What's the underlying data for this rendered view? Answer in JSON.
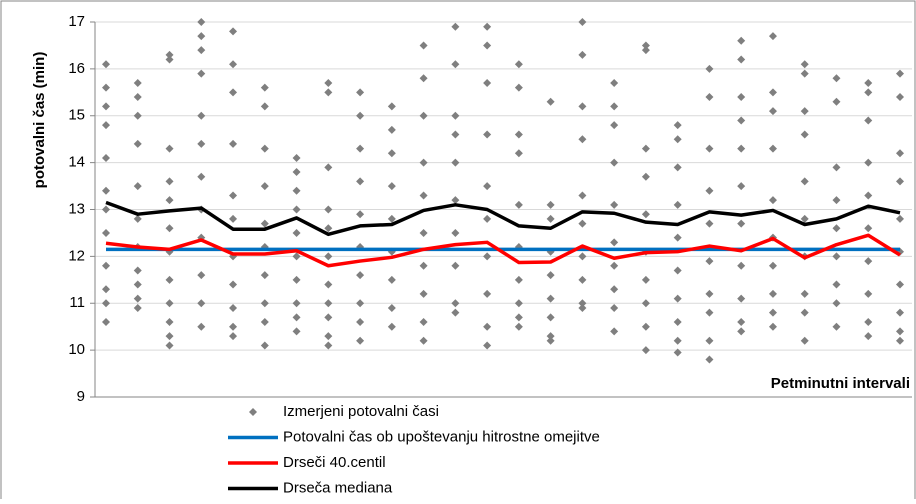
{
  "chart_data": {
    "type": "line",
    "y_label": "potovalni čas (min)",
    "x_label": "Petminutni intervali",
    "categories": [
      null,
      null,
      null,
      null,
      null,
      null,
      null,
      null,
      null,
      null,
      null,
      null,
      null,
      null,
      null,
      null,
      null,
      null,
      null,
      null,
      null,
      null,
      null,
      null,
      null,
      null
    ],
    "ylim": [
      9,
      17
    ],
    "yticks": [
      9,
      10,
      11,
      12,
      13,
      14,
      15,
      16,
      17
    ],
    "grid": true,
    "series": [
      {
        "name": "Izmerjeni potovalni časi",
        "type": "scatter",
        "color": "#7f7f7f",
        "values": [
          [
            16.1,
            15.6,
            15.2,
            14.8,
            14.1,
            13.4,
            13.0,
            12.5,
            11.8,
            11.3,
            11.0,
            10.6
          ],
          [
            15.7,
            15.4,
            15.0,
            14.4,
            13.5,
            12.8,
            12.2,
            11.7,
            11.4,
            11.1,
            10.9
          ],
          [
            16.3,
            16.2,
            14.3,
            13.6,
            13.2,
            12.6,
            12.1,
            11.5,
            11.0,
            10.6,
            10.3,
            10.1
          ],
          [
            17.0,
            16.7,
            16.4,
            15.9,
            15.0,
            14.4,
            13.7,
            13.0,
            12.4,
            11.6,
            11.0,
            10.5
          ],
          [
            16.8,
            16.1,
            15.5,
            14.4,
            13.3,
            12.8,
            12.0,
            11.4,
            10.9,
            10.5,
            10.3
          ],
          [
            15.6,
            15.2,
            14.3,
            13.5,
            12.7,
            12.2,
            11.6,
            11.0,
            10.6,
            10.1
          ],
          [
            14.1,
            13.8,
            13.4,
            13.0,
            12.5,
            12.0,
            11.5,
            11.0,
            10.7,
            10.4
          ],
          [
            15.7,
            15.5,
            13.9,
            13.0,
            12.6,
            12.0,
            11.4,
            11.0,
            10.7,
            10.3,
            10.1
          ],
          [
            15.5,
            15.0,
            14.3,
            13.6,
            12.9,
            12.2,
            11.6,
            11.0,
            10.6,
            10.2
          ],
          [
            15.2,
            14.7,
            14.2,
            13.5,
            12.8,
            12.1,
            11.5,
            10.9,
            10.5
          ],
          [
            16.5,
            15.8,
            15.0,
            14.0,
            13.3,
            12.5,
            11.8,
            11.2,
            10.6,
            10.2
          ],
          [
            16.9,
            16.1,
            15.0,
            14.6,
            14.0,
            13.2,
            12.5,
            11.8,
            11.0,
            10.8
          ],
          [
            16.9,
            16.5,
            15.7,
            14.6,
            13.5,
            12.8,
            12.0,
            11.2,
            10.5,
            10.1
          ],
          [
            16.1,
            15.6,
            14.6,
            14.2,
            13.1,
            12.2,
            11.5,
            11.0,
            10.7,
            10.5
          ],
          [
            15.3,
            13.1,
            12.8,
            12.1,
            11.6,
            11.1,
            10.7,
            10.3,
            10.2
          ],
          [
            17.0,
            16.3,
            15.2,
            14.5,
            13.3,
            12.7,
            12.0,
            11.5,
            11.0,
            10.9
          ],
          [
            15.7,
            15.2,
            14.8,
            14.0,
            13.1,
            12.3,
            11.8,
            11.3,
            10.9,
            10.4
          ],
          [
            16.5,
            16.4,
            14.3,
            13.7,
            12.9,
            12.1,
            11.5,
            11.0,
            10.5,
            10.0
          ],
          [
            14.8,
            14.5,
            13.9,
            13.1,
            12.4,
            11.7,
            11.1,
            10.6,
            10.2,
            9.95
          ],
          [
            16.0,
            15.4,
            14.3,
            13.4,
            12.7,
            11.9,
            11.2,
            10.8,
            10.2,
            9.8
          ],
          [
            16.6,
            16.2,
            15.4,
            14.9,
            14.3,
            13.5,
            12.7,
            11.8,
            11.1,
            10.6,
            10.4
          ],
          [
            16.7,
            15.5,
            15.1,
            14.3,
            13.2,
            12.4,
            11.8,
            11.2,
            10.8,
            10.5
          ],
          [
            16.1,
            15.9,
            15.1,
            14.6,
            13.6,
            12.8,
            12.0,
            11.2,
            10.8,
            10.2
          ],
          [
            15.8,
            15.3,
            13.9,
            13.2,
            12.6,
            12.0,
            11.4,
            11.0,
            10.5
          ],
          [
            15.7,
            15.5,
            14.9,
            14.0,
            13.3,
            12.6,
            11.9,
            11.2,
            10.6,
            10.3
          ],
          [
            15.9,
            15.4,
            14.2,
            13.6,
            12.8,
            12.1,
            11.4,
            10.8,
            10.4,
            10.2
          ]
        ]
      },
      {
        "name": "Potovalni čas ob upoštevanju hitrostne omejitve",
        "color": "#0070c0",
        "values": [
          12.15,
          12.15,
          12.15,
          12.15,
          12.15,
          12.15,
          12.15,
          12.15,
          12.15,
          12.15,
          12.15,
          12.15,
          12.15,
          12.15,
          12.15,
          12.15,
          12.15,
          12.15,
          12.15,
          12.15,
          12.15,
          12.15,
          12.15,
          12.15,
          12.15,
          12.15
        ]
      },
      {
        "name": "Drseči 40.centil",
        "color": "#ff0000",
        "values": [
          12.28,
          12.2,
          12.15,
          12.35,
          12.05,
          12.05,
          12.12,
          11.8,
          11.9,
          11.98,
          12.15,
          12.25,
          12.3,
          11.87,
          11.88,
          12.22,
          11.96,
          12.08,
          12.1,
          12.22,
          12.12,
          12.38,
          11.97,
          12.25,
          12.45,
          12.03
        ]
      },
      {
        "name": "Drseča mediana",
        "color": "#000000",
        "values": [
          13.15,
          12.9,
          12.97,
          13.03,
          12.58,
          12.58,
          12.82,
          12.47,
          12.65,
          12.68,
          12.98,
          13.1,
          13.0,
          12.65,
          12.6,
          12.95,
          12.92,
          12.73,
          12.68,
          12.95,
          12.88,
          12.98,
          12.68,
          12.8,
          13.07,
          12.93
        ]
      }
    ]
  }
}
